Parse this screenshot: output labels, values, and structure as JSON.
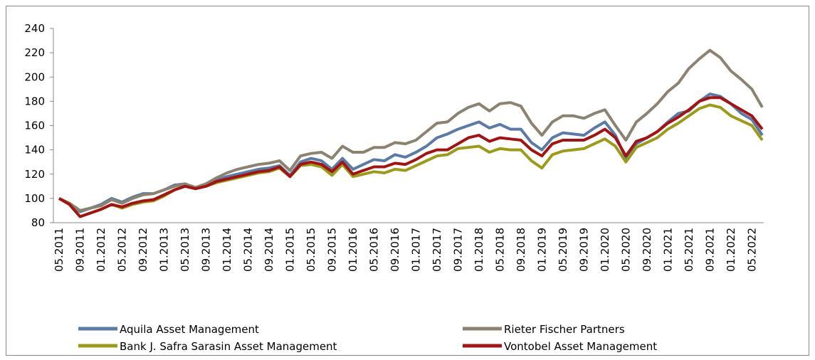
{
  "chart_data": {
    "type": "line",
    "categories": [
      "05.2011",
      null,
      "09.2011",
      null,
      "01.2012",
      null,
      "05.2012",
      null,
      "09.2012",
      null,
      "01.2013",
      null,
      "05.2013",
      null,
      "09.2013",
      null,
      "01.2014",
      null,
      "05.2014",
      null,
      "09.2014",
      null,
      "01.2015",
      null,
      "05.2015",
      null,
      "09.2015",
      null,
      "01.2016",
      null,
      "05.2016",
      null,
      "09.2016",
      null,
      "01.2017",
      null,
      "05.2017",
      null,
      "09.2017",
      null,
      "01.2018",
      null,
      "05.2018",
      null,
      "09.2018",
      null,
      "01.2019",
      null,
      "05.2019",
      null,
      "09.2019",
      null,
      "01.2020",
      null,
      "05.2020",
      null,
      "09.2020",
      null,
      "01.2021",
      null,
      "05.2021",
      null,
      "09.2021",
      null,
      "01.2022",
      null,
      "05.2022",
      null
    ],
    "series": [
      {
        "name": "Aquila Asset Management",
        "color": "#5b7aa6",
        "values": [
          100,
          96,
          89,
          92,
          95,
          100,
          97,
          101,
          104,
          104,
          107,
          111,
          112,
          108,
          111,
          115,
          118,
          120,
          122,
          124,
          125,
          127,
          119,
          130,
          133,
          131,
          124,
          133,
          124,
          128,
          132,
          131,
          136,
          134,
          138,
          143,
          150,
          153,
          157,
          160,
          163,
          158,
          161,
          157,
          157,
          146,
          140,
          150,
          154,
          153,
          152,
          158,
          163,
          152,
          133,
          145,
          150,
          155,
          163,
          170,
          172,
          180,
          186,
          184,
          178,
          170,
          165,
          152
        ]
      },
      {
        "name": "Rieter Fischer Partners",
        "color": "#8c8272",
        "values": [
          100,
          96,
          90,
          92,
          94,
          99,
          96,
          100,
          103,
          104,
          107,
          110,
          112,
          109,
          112,
          117,
          121,
          124,
          126,
          128,
          129,
          131,
          123,
          135,
          137,
          138,
          133,
          143,
          138,
          138,
          142,
          142,
          146,
          145,
          148,
          155,
          162,
          163,
          170,
          175,
          178,
          172,
          178,
          179,
          176,
          162,
          152,
          163,
          168,
          168,
          166,
          170,
          173,
          160,
          148,
          163,
          170,
          178,
          188,
          195,
          207,
          215,
          222,
          216,
          205,
          198,
          190,
          175
        ]
      },
      {
        "name": "Bank J. Safra Sarasin Asset Management",
        "color": "#9c9a1c",
        "values": [
          100,
          95,
          85,
          88,
          91,
          95,
          92,
          95,
          97,
          98,
          102,
          107,
          110,
          108,
          110,
          113,
          115,
          117,
          119,
          121,
          122,
          125,
          118,
          127,
          128,
          126,
          119,
          128,
          118,
          120,
          122,
          121,
          124,
          123,
          127,
          131,
          135,
          136,
          141,
          142,
          143,
          138,
          141,
          140,
          140,
          131,
          125,
          136,
          139,
          140,
          141,
          145,
          149,
          143,
          130,
          142,
          146,
          150,
          157,
          162,
          168,
          174,
          177,
          175,
          168,
          164,
          160,
          148
        ]
      },
      {
        "name": "Vontobel Asset Management",
        "color": "#a01414",
        "values": [
          100,
          95,
          85,
          88,
          91,
          95,
          93,
          96,
          98,
          99,
          103,
          107,
          110,
          108,
          110,
          114,
          116,
          118,
          120,
          122,
          123,
          126,
          118,
          128,
          130,
          128,
          122,
          130,
          120,
          123,
          126,
          126,
          129,
          128,
          132,
          137,
          140,
          140,
          145,
          150,
          152,
          147,
          150,
          149,
          148,
          140,
          135,
          145,
          148,
          148,
          148,
          152,
          157,
          150,
          135,
          147,
          150,
          155,
          162,
          167,
          173,
          180,
          183,
          183,
          178,
          173,
          168,
          157
        ]
      }
    ],
    "ylim": [
      80,
      240
    ],
    "yticks": [
      80,
      100,
      120,
      140,
      160,
      180,
      200,
      220,
      240
    ],
    "grid": false,
    "legend": "bottom"
  }
}
